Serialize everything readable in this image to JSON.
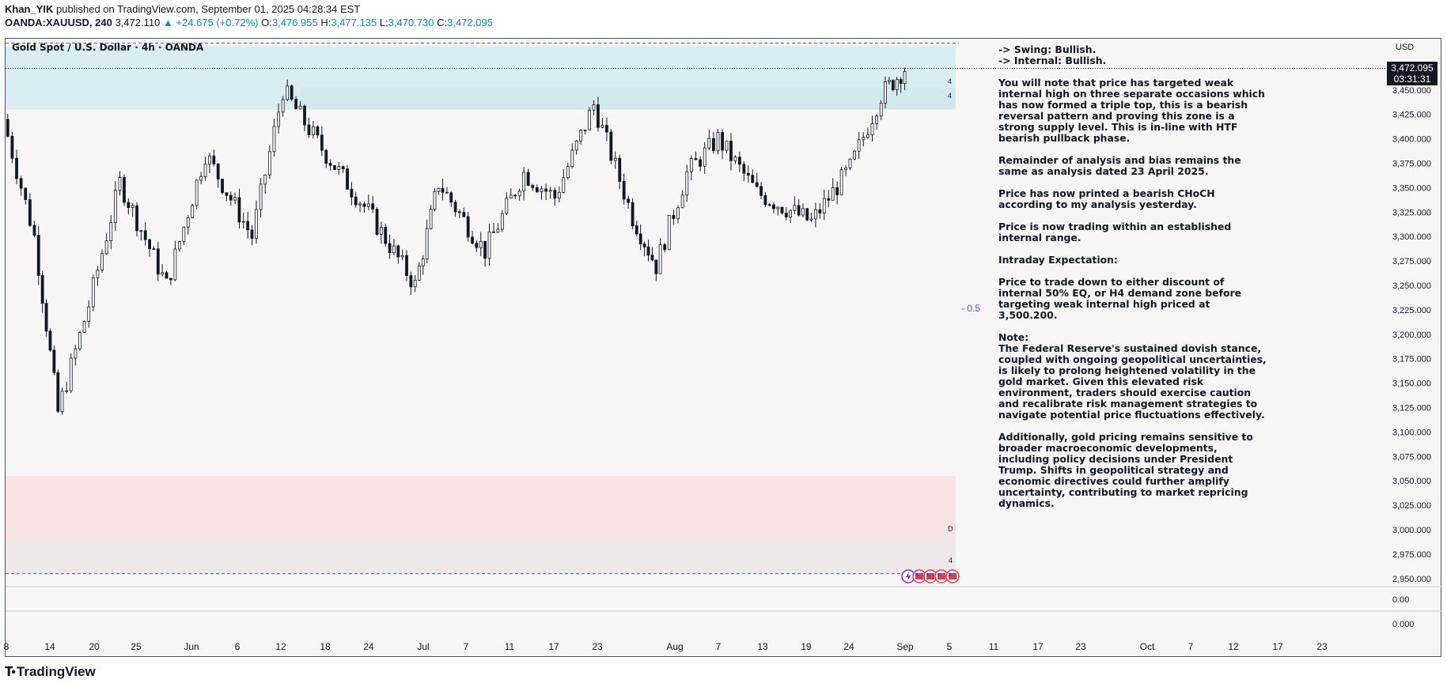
{
  "header": {
    "author": "Khan_YIK",
    "published_text": "published on TradingView.com, September 01, 2025 04:28:34 EST",
    "symbol": "OANDA:XAUUSD, 240",
    "last": "3,472.110",
    "change": "▲ +24.675 (+0.72%)",
    "open_label": "O:",
    "open": "3,476.955",
    "high_label": "H:",
    "high": "3,477.135",
    "low_label": "L:",
    "low": "3,470.730",
    "close_label": "C:",
    "close": "3,472.095"
  },
  "chart_title": "Gold Spot / U.S. Dollar · 4h · OANDA",
  "price_axis": {
    "currency": "USD",
    "current_price": "3,472.095",
    "countdown": "03:31:31",
    "labels": [
      "3,450.000",
      "3,425.000",
      "3,400.000",
      "3,375.000",
      "3,350.000",
      "3,325.000",
      "3,300.000",
      "3,275.000",
      "3,250.000",
      "3,225.000",
      "3,200.000",
      "3,175.000",
      "3,150.000",
      "3,125.000",
      "3,100.000",
      "3,075.000",
      "3,050.000",
      "3,025.000",
      "3,000.000",
      "2,975.000",
      "2,950.000"
    ],
    "indicator_labels": [
      "0.00",
      "0.000"
    ]
  },
  "time_axis": {
    "labels": [
      "8",
      "14",
      "20",
      "25",
      "Jun",
      "6",
      "12",
      "18",
      "24",
      "Jul",
      "7",
      "11",
      "17",
      "23",
      "Aug",
      "7",
      "13",
      "19",
      "24",
      "Sep",
      "5",
      "11",
      "17",
      "23",
      "Oct",
      "7",
      "12",
      "17",
      "23"
    ]
  },
  "annotations": {
    "eq_label": "- 0.5",
    "zone_marks": [
      "4",
      "4",
      "D",
      "4"
    ]
  },
  "colors": {
    "up": "#089981",
    "supply_zone": "#d6ecf0",
    "demand_zone": "#f7e2e2",
    "dashed_lines": "#2962ff",
    "candles": "#131722"
  },
  "analysis": {
    "bias_swing": "-> Swing:  Bullish.",
    "bias_internal": "-> Internal:  Bullish.",
    "p1": "You will note that price has targeted weak internal high on three separate occasions which has now formed a triple top, this is a bearish reversal pattern and proving this zone is a strong supply level.  This is in-line with HTF bearish pullback phase.",
    "p2": "Remainder of analysis and bias remains the same as analysis dated 23 April 2025.",
    "p3": "Price has now printed a bearish CHoCH according to my analysis yesterday.",
    "p4": "Price is now trading within an established internal range.",
    "p5": "Intraday Expectation:",
    "p6": "Price to trade down to either discount of internal 50% EQ, or H4 demand zone before targeting weak internal high priced at 3,500.200.",
    "p7_title": "Note:",
    "p7": "The Federal Reserve's sustained dovish stance, coupled with ongoing geopolitical uncertainties, is likely to prolong heightened volatility in the gold market. Given this elevated risk environment, traders should exercise caution and recalibrate risk management strategies to navigate potential price fluctuations effectively.",
    "p8": "Additionally, gold pricing remains sensitive to broader macroeconomic developments, including policy decisions under President Trump. Shifts in geopolitical strategy and economic directives could further amplify uncertainty, contributing to market repricing dynamics."
  },
  "footer": {
    "brand": "TradingView"
  },
  "chart_data": {
    "type": "candlestick",
    "title": "Gold Spot / U.S. Dollar · 4h · OANDA",
    "ylim": [
      2945,
      3500
    ],
    "y_unit": "USD",
    "zones": [
      {
        "type": "supply",
        "from": 3430,
        "to": 3495
      },
      {
        "type": "supply-inner",
        "from": 3430,
        "to": 3452
      },
      {
        "type": "demand",
        "from": 2990,
        "to": 3055
      },
      {
        "type": "demand-lower",
        "from": 2955,
        "to": 2990
      }
    ],
    "levels": [
      {
        "kind": "dashed-top",
        "value": 3498
      },
      {
        "kind": "dashed-bottom",
        "value": 2955
      },
      {
        "kind": "current",
        "value": 3472.095
      }
    ],
    "price_path": [
      {
        "date": "2025-05-08",
        "price": 3420
      },
      {
        "date": "2025-05-12",
        "price": 3300
      },
      {
        "date": "2025-05-15",
        "price": 3120
      },
      {
        "date": "2025-05-19",
        "price": 3230
      },
      {
        "date": "2025-05-23",
        "price": 3355
      },
      {
        "date": "2025-05-29",
        "price": 3250
      },
      {
        "date": "2025-06-03",
        "price": 3385
      },
      {
        "date": "2025-06-09",
        "price": 3300
      },
      {
        "date": "2025-06-13",
        "price": 3450
      },
      {
        "date": "2025-06-18",
        "price": 3390
      },
      {
        "date": "2025-06-24",
        "price": 3325
      },
      {
        "date": "2025-06-30",
        "price": 3250
      },
      {
        "date": "2025-07-03",
        "price": 3355
      },
      {
        "date": "2025-07-09",
        "price": 3285
      },
      {
        "date": "2025-07-14",
        "price": 3365
      },
      {
        "date": "2025-07-18",
        "price": 3340
      },
      {
        "date": "2025-07-23",
        "price": 3435
      },
      {
        "date": "2025-07-28",
        "price": 3320
      },
      {
        "date": "2025-07-31",
        "price": 3270
      },
      {
        "date": "2025-08-04",
        "price": 3365
      },
      {
        "date": "2025-08-08",
        "price": 3400
      },
      {
        "date": "2025-08-13",
        "price": 3345
      },
      {
        "date": "2025-08-20",
        "price": 3315
      },
      {
        "date": "2025-08-25",
        "price": 3370
      },
      {
        "date": "2025-08-29",
        "price": 3445
      },
      {
        "date": "2025-09-01",
        "price": 3472
      }
    ]
  }
}
